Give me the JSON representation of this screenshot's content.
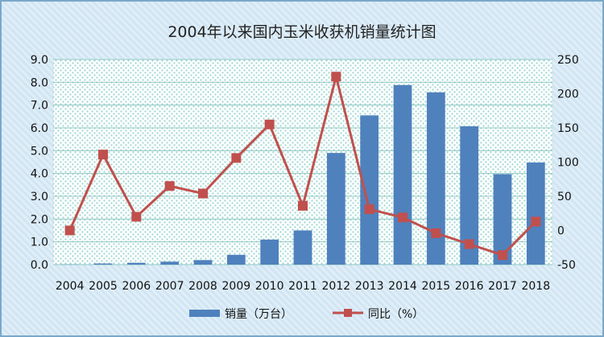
{
  "chart_data": {
    "type": "bar",
    "title": "2004年以来国内玉米收获机销量统计图",
    "categories": [
      "2004",
      "2005",
      "2006",
      "2007",
      "2008",
      "2009",
      "2010",
      "2011",
      "2012",
      "2013",
      "2014",
      "2015",
      "2016",
      "2017",
      "2018"
    ],
    "series": [
      {
        "name": "销量（万台）",
        "type": "bar",
        "axis": "left",
        "color": "#4f81bd",
        "values": [
          0.01,
          0.05,
          0.08,
          0.13,
          0.2,
          0.43,
          1.1,
          1.5,
          4.9,
          6.55,
          7.88,
          7.56,
          6.07,
          3.97,
          4.48
        ]
      },
      {
        "name": "同比（%）",
        "type": "line",
        "axis": "right",
        "color": "#c0504d",
        "values": [
          0,
          111,
          20,
          65,
          54,
          106,
          155,
          36,
          225,
          31,
          19,
          -4,
          -20,
          -36,
          13
        ]
      }
    ],
    "y_left": {
      "min": 0,
      "max": 9,
      "step": 1,
      "tick_labels": [
        "0.0",
        "1.0",
        "2.0",
        "3.0",
        "4.0",
        "5.0",
        "6.0",
        "7.0",
        "8.0",
        "9.0"
      ]
    },
    "y_right": {
      "min": -50,
      "max": 250,
      "step": 50,
      "tick_labels": [
        "-50",
        "0",
        "50",
        "100",
        "150",
        "200",
        "250"
      ]
    },
    "legend_position": "bottom",
    "plot_background": "#a9dad6"
  }
}
